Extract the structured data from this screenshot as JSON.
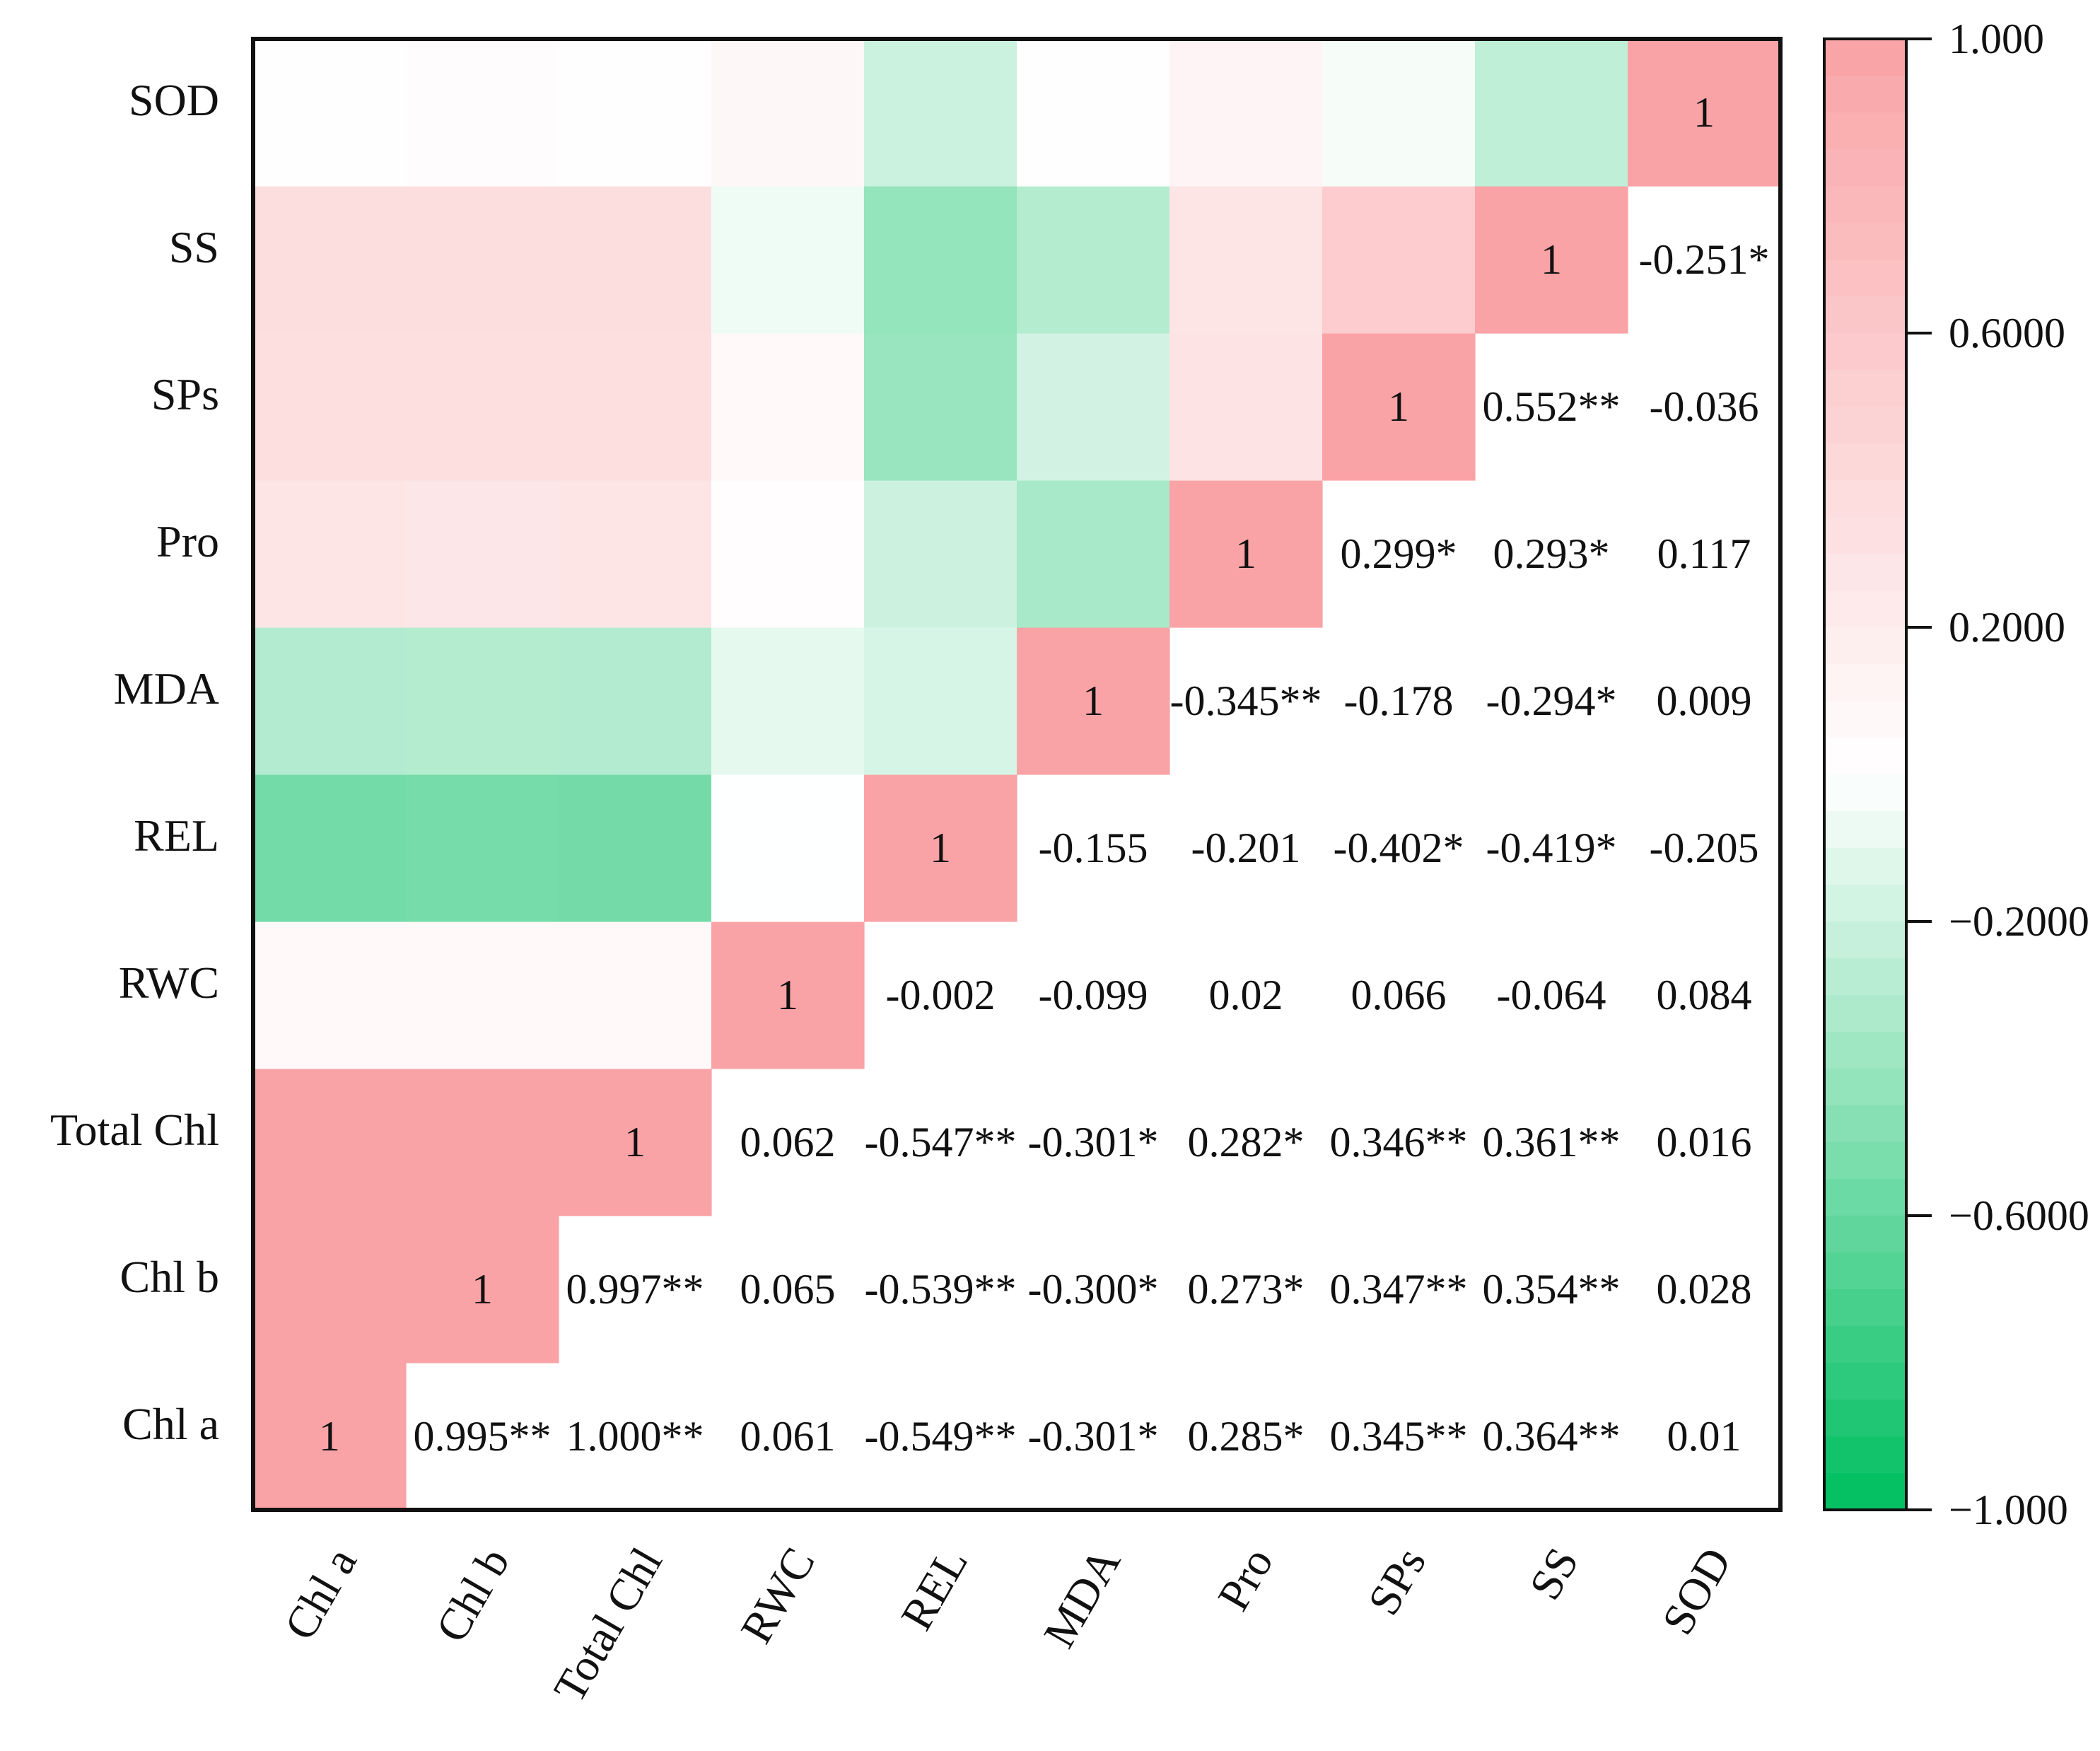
{
  "chart_data": {
    "type": "heatmap",
    "title": "",
    "variables": [
      "Chl a",
      "Chl b",
      "Total Chl",
      "RWC",
      "REL",
      "MDA",
      "Pro",
      "SPs",
      "SS",
      "SOD"
    ],
    "x_tick_labels": [
      "Chl a",
      "Chl b",
      "Total Chl",
      "RWC",
      "REL",
      "MDA",
      "Pro",
      "SPs",
      "SS",
      "SOD"
    ],
    "y_tick_labels": [
      "SOD",
      "SS",
      "SPs",
      "Pro",
      "MDA",
      "REL",
      "RWC",
      "Total Chl",
      "Chl b",
      "Chl a"
    ],
    "matrix": [
      [
        1,
        0.995,
        1.0,
        0.061,
        -0.549,
        -0.301,
        0.285,
        0.345,
        0.364,
        0.01
      ],
      [
        0.995,
        1,
        0.997,
        0.065,
        -0.539,
        -0.3,
        0.273,
        0.347,
        0.354,
        0.028
      ],
      [
        1.0,
        0.997,
        1,
        0.062,
        -0.547,
        -0.301,
        0.282,
        0.346,
        0.361,
        0.016
      ],
      [
        0.061,
        0.065,
        0.062,
        1,
        -0.002,
        -0.099,
        0.02,
        0.066,
        -0.064,
        0.084
      ],
      [
        -0.549,
        -0.539,
        -0.547,
        -0.002,
        1,
        -0.155,
        -0.201,
        -0.402,
        -0.419,
        -0.205
      ],
      [
        -0.301,
        -0.3,
        -0.301,
        -0.099,
        -0.155,
        1,
        -0.345,
        -0.178,
        -0.294,
        0.009
      ],
      [
        0.285,
        0.273,
        0.282,
        0.02,
        -0.201,
        -0.345,
        1,
        0.299,
        0.293,
        0.117
      ],
      [
        0.345,
        0.347,
        0.346,
        0.066,
        -0.402,
        -0.178,
        0.299,
        1,
        0.552,
        -0.036
      ],
      [
        0.364,
        0.354,
        0.361,
        -0.064,
        -0.419,
        -0.294,
        0.293,
        0.552,
        1,
        -0.251
      ],
      [
        0.01,
        0.028,
        0.016,
        0.084,
        -0.205,
        0.009,
        0.117,
        -0.036,
        -0.251,
        1
      ]
    ],
    "cell_labels": [
      [
        "1",
        "0.995**",
        "1.000**",
        "0.061",
        "-0.549**",
        "-0.301*",
        "0.285*",
        "0.345**",
        "0.364**",
        "0.01"
      ],
      [
        "",
        "1",
        "0.997**",
        "0.065",
        "-0.539**",
        "-0.300*",
        "0.273*",
        "0.347**",
        "0.354**",
        "0.028"
      ],
      [
        "",
        "",
        "1",
        "0.062",
        "-0.547**",
        "-0.301*",
        "0.282*",
        "0.346**",
        "0.361**",
        "0.016"
      ],
      [
        "",
        "",
        "",
        "1",
        "-0.002",
        "-0.099",
        "0.02",
        "0.066",
        "-0.064",
        "0.084"
      ],
      [
        "",
        "",
        "",
        "",
        "1",
        "-0.155",
        "-0.201",
        "-0.402*",
        "-0.419*",
        "-0.205"
      ],
      [
        "",
        "",
        "",
        "",
        "",
        "1",
        "-0.345**",
        "-0.178",
        "-0.294*",
        "0.009"
      ],
      [
        "",
        "",
        "",
        "",
        "",
        "",
        "1",
        "0.299*",
        "0.293*",
        "0.117"
      ],
      [
        "",
        "",
        "",
        "",
        "",
        "",
        "",
        "1",
        "0.552**",
        "-0.036"
      ],
      [
        "",
        "",
        "",
        "",
        "",
        "",
        "",
        "",
        "1",
        "-0.251*"
      ],
      [
        "",
        "",
        "",
        "",
        "",
        "",
        "",
        "",
        "",
        "1"
      ]
    ],
    "colorbar": {
      "range": [
        -1.0,
        1.0
      ],
      "tick_values": [
        1.0,
        0.6,
        0.2,
        -0.2,
        -0.6,
        -1.0
      ],
      "tick_labels": [
        "1.000",
        "0.6000",
        "0.2000",
        "−0.2000",
        "−0.6000",
        "−1.000"
      ]
    },
    "colors": {
      "positive": "#f9a3a6",
      "neutral": "#ffffff",
      "negative": "#00be60",
      "frame": "#111111"
    }
  }
}
